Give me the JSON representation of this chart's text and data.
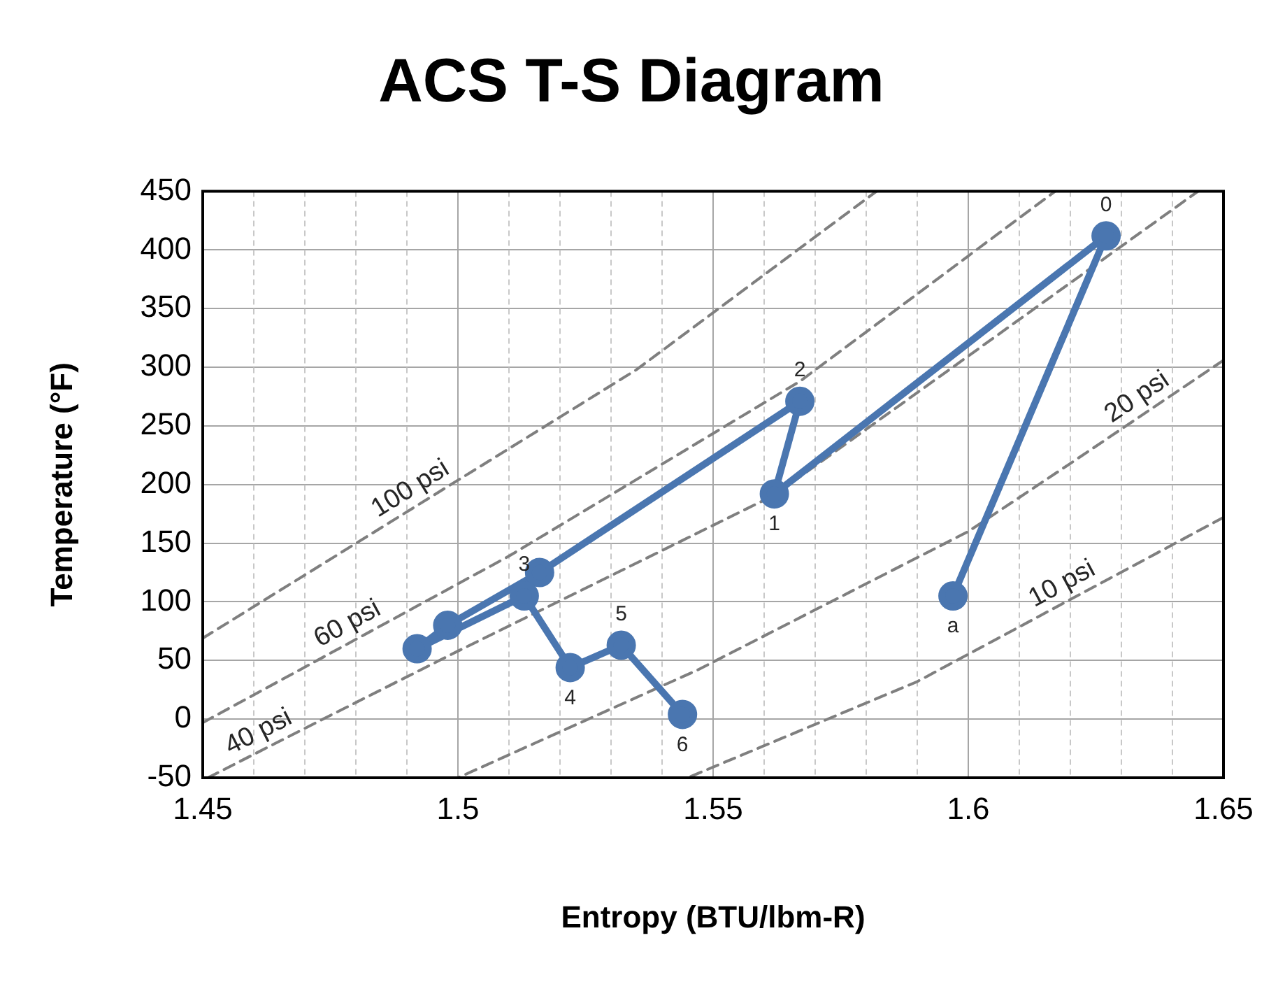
{
  "chart_data": {
    "type": "line",
    "title": "ACS T-S Diagram",
    "xlabel": "Entropy (BTU/lbm-R)",
    "ylabel": "Temperature (°F)",
    "xlim": [
      1.45,
      1.65
    ],
    "ylim": [
      -50,
      450
    ],
    "xticks": [
      1.45,
      {
        "value": 1.46,
        "label": null
      },
      {
        "value": 1.47,
        "label": null
      },
      {
        "value": 1.48,
        "label": null
      },
      {
        "value": 1.49,
        "label": null
      },
      1.5,
      {
        "value": 1.51,
        "label": null
      },
      {
        "value": 1.52,
        "label": null
      },
      {
        "value": 1.53,
        "label": null
      },
      {
        "value": 1.54,
        "label": null
      },
      1.55,
      {
        "value": 1.56,
        "label": null
      },
      {
        "value": 1.57,
        "label": null
      },
      {
        "value": 1.58,
        "label": null
      },
      {
        "value": 1.59,
        "label": null
      },
      1.6,
      {
        "value": 1.61,
        "label": null
      },
      {
        "value": 1.62,
        "label": null
      },
      {
        "value": 1.63,
        "label": null
      },
      {
        "value": 1.64,
        "label": null
      },
      1.65
    ],
    "yticks": [
      -50,
      0,
      50,
      100,
      150,
      200,
      250,
      300,
      350,
      400,
      450
    ],
    "grid": true,
    "marker": "circle",
    "line_style": "solid",
    "series": [
      {
        "color": "#4a76b0",
        "x": [
          1.597,
          1.627,
          1.562,
          1.567,
          1.516,
          1.498,
          1.492,
          1.513,
          1.522,
          1.532,
          1.544
        ],
        "values": [
          105,
          412,
          192,
          271,
          125,
          80,
          60,
          105,
          44,
          63,
          4
        ]
      },
      {
        "name": "100 psi",
        "color": "#7f7f7f",
        "line_style": "dashed",
        "marker": "none",
        "x": [
          1.45,
          1.535,
          1.582
        ],
        "values": [
          69,
          298,
          450
        ]
      },
      {
        "name": "60 psi",
        "color": "#7f7f7f",
        "line_style": "dashed",
        "marker": "none",
        "x": [
          1.45,
          1.51,
          1.567,
          1.617
        ],
        "values": [
          -3,
          139,
          288,
          450
        ]
      },
      {
        "name": "40 psi",
        "color": "#7f7f7f",
        "line_style": "dashed",
        "marker": "none",
        "x": [
          1.451,
          1.474,
          1.5,
          1.562,
          1.645
        ],
        "values": [
          -50,
          1,
          58,
          191,
          450
        ]
      },
      {
        "name": "20 psi",
        "color": "#7f7f7f",
        "line_style": "dashed",
        "marker": "none",
        "x": [
          1.65,
          1.62,
          1.6,
          1.547,
          1.5
        ],
        "values": [
          306,
          218,
          160,
          42,
          -50
        ]
      },
      {
        "name": "10 psi",
        "color": "#7f7f7f",
        "line_style": "dashed",
        "marker": "none",
        "x": [
          1.65,
          1.59,
          1.545
        ],
        "values": [
          172,
          32,
          -50
        ]
      }
    ],
    "annotations": [
      {
        "text": "0",
        "x": 1.627,
        "y": 412
      },
      {
        "text": "2",
        "x": 1.567,
        "y": 271
      },
      {
        "text": "1",
        "x": 1.562,
        "y": 192
      },
      {
        "text": "3",
        "x": 1.513,
        "y": 105
      },
      {
        "text": "4",
        "x": 1.522,
        "y": 44
      },
      {
        "text": "5",
        "x": 1.532,
        "y": 63
      },
      {
        "text": "6",
        "x": 1.544,
        "y": 4
      },
      {
        "text": "a",
        "x": 1.597,
        "y": 105
      }
    ]
  }
}
